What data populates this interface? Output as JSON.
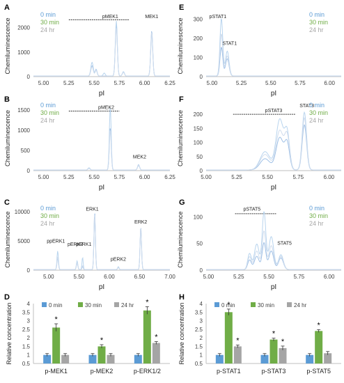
{
  "colors": {
    "blue": "#5b9bd5",
    "green": "#70ad47",
    "gray": "#a5a5a5",
    "line_blue": "#9fc0e6",
    "axis": "#bfbfbf",
    "text": "#404040"
  },
  "chart_data": [
    {
      "panel": "A",
      "type": "line",
      "xlabel": "pI",
      "ylabel": "Chemiluminescence",
      "xlim": [
        4.9,
        6.25
      ],
      "ylim": [
        0,
        2500
      ],
      "xticks": [
        "5.00",
        "5.25",
        "5.50",
        "5.75",
        "6.00",
        "6.25"
      ],
      "xtick_values": [
        5.0,
        5.25,
        5.5,
        5.75,
        6.0,
        6.25
      ],
      "yticks": [
        "0",
        "1000",
        "2000"
      ],
      "ytick_values": [
        0,
        1000,
        2000
      ],
      "legend": [
        "0 min",
        "30 min",
        "24 hr"
      ],
      "annotations": [
        {
          "text": "pMEK1",
          "x": 5.66,
          "y": 2380
        },
        {
          "text": "MEK1",
          "x": 6.07,
          "y": 2380
        }
      ],
      "bracket": {
        "x1": 5.25,
        "x2": 5.85,
        "y": 2320
      },
      "series": [
        {
          "name": "0 min",
          "peaks": [
            {
              "pI": 5.48,
              "h": 420,
              "w": 0.012
            },
            {
              "pI": 5.52,
              "h": 250,
              "w": 0.01
            },
            {
              "pI": 5.72,
              "h": 2100,
              "w": 0.01
            },
            {
              "pI": 5.79,
              "h": 170,
              "w": 0.01
            },
            {
              "pI": 6.07,
              "h": 1850,
              "w": 0.01
            }
          ]
        },
        {
          "name": "30 min",
          "peaks": [
            {
              "pI": 5.48,
              "h": 560,
              "w": 0.012
            },
            {
              "pI": 5.52,
              "h": 280,
              "w": 0.01
            },
            {
              "pI": 5.6,
              "h": 120,
              "w": 0.01
            },
            {
              "pI": 5.72,
              "h": 2250,
              "w": 0.01
            },
            {
              "pI": 5.79,
              "h": 180,
              "w": 0.01
            },
            {
              "pI": 6.07,
              "h": 1720,
              "w": 0.01
            }
          ]
        },
        {
          "name": "24 hr",
          "peaks": [
            {
              "pI": 5.48,
              "h": 380,
              "w": 0.012
            },
            {
              "pI": 5.52,
              "h": 230,
              "w": 0.01
            },
            {
              "pI": 5.72,
              "h": 1950,
              "w": 0.01
            },
            {
              "pI": 5.79,
              "h": 150,
              "w": 0.01
            },
            {
              "pI": 6.07,
              "h": 1800,
              "w": 0.01
            }
          ]
        }
      ]
    },
    {
      "panel": "B",
      "type": "line",
      "xlabel": "pI",
      "ylabel": "Chemiluminescence",
      "xlim": [
        4.9,
        6.25
      ],
      "ylim": [
        0,
        1600
      ],
      "xticks": [
        "5.00",
        "5.25",
        "5.50",
        "5.75",
        "6.00",
        "6.25"
      ],
      "xtick_values": [
        5.0,
        5.25,
        5.5,
        5.75,
        6.0,
        6.25
      ],
      "yticks": [
        "0",
        "500",
        "1000",
        "1500"
      ],
      "ytick_values": [
        0,
        500,
        1000,
        1500
      ],
      "legend": [
        "0 min",
        "30 min",
        "24 hr"
      ],
      "annotations": [
        {
          "text": "pMEK2",
          "x": 5.62,
          "y": 1520
        },
        {
          "text": "MEK2",
          "x": 5.95,
          "y": 300
        }
      ],
      "bracket": {
        "x1": 5.25,
        "x2": 5.75,
        "y": 1470
      },
      "series": [
        {
          "name": "0 min",
          "peaks": [
            {
              "pI": 5.66,
              "h": 1050,
              "w": 0.009
            },
            {
              "pI": 5.45,
              "h": 40,
              "w": 0.01
            },
            {
              "pI": 5.94,
              "h": 130,
              "w": 0.01
            }
          ]
        },
        {
          "name": "30 min",
          "peaks": [
            {
              "pI": 5.66,
              "h": 1560,
              "w": 0.009
            },
            {
              "pI": 5.45,
              "h": 55,
              "w": 0.01
            },
            {
              "pI": 5.94,
              "h": 110,
              "w": 0.01
            }
          ]
        },
        {
          "name": "24 hr",
          "peaks": [
            {
              "pI": 5.66,
              "h": 1000,
              "w": 0.009
            },
            {
              "pI": 5.45,
              "h": 40,
              "w": 0.01
            },
            {
              "pI": 5.94,
              "h": 120,
              "w": 0.01
            }
          ]
        }
      ]
    },
    {
      "panel": "C",
      "type": "line",
      "xlabel": "pI",
      "ylabel": "Chemiluminescence",
      "xlim": [
        4.75,
        7.0
      ],
      "ylim": [
        0,
        10500
      ],
      "xticks": [
        "5.00",
        "5.50",
        "6.00",
        "6.50",
        "7.00"
      ],
      "xtick_values": [
        5.0,
        5.5,
        6.0,
        6.5,
        7.0
      ],
      "yticks": [
        "0",
        "5000",
        "10000"
      ],
      "ytick_values": [
        0,
        5000,
        10000
      ],
      "legend": [
        "0 min",
        "30 min",
        "24 hr"
      ],
      "annotations": [
        {
          "text": "ppERK1",
          "x": 5.12,
          "y": 4700
        },
        {
          "text": "pERK2",
          "x": 5.44,
          "y": 4200
        },
        {
          "text": "pERK1",
          "x": 5.58,
          "y": 4200
        },
        {
          "text": "ERK1",
          "x": 5.72,
          "y": 10200
        },
        {
          "text": "pERK2",
          "x": 6.15,
          "y": 1600
        },
        {
          "text": "ERK2",
          "x": 6.52,
          "y": 8000
        }
      ],
      "series": [
        {
          "name": "0 min",
          "peaks": [
            {
              "pI": 5.15,
              "h": 2000,
              "w": 0.012
            },
            {
              "pI": 5.47,
              "h": 1100,
              "w": 0.012
            },
            {
              "pI": 5.56,
              "h": 500,
              "w": 0.01
            },
            {
              "pI": 5.76,
              "h": 9800,
              "w": 0.012
            },
            {
              "pI": 6.15,
              "h": 350,
              "w": 0.012
            },
            {
              "pI": 6.52,
              "h": 7400,
              "w": 0.012
            }
          ]
        },
        {
          "name": "30 min",
          "peaks": [
            {
              "pI": 5.15,
              "h": 3200,
              "w": 0.012
            },
            {
              "pI": 5.47,
              "h": 1500,
              "w": 0.012
            },
            {
              "pI": 5.56,
              "h": 2100,
              "w": 0.01
            },
            {
              "pI": 5.76,
              "h": 9000,
              "w": 0.012
            },
            {
              "pI": 6.15,
              "h": 500,
              "w": 0.012
            },
            {
              "pI": 6.52,
              "h": 7100,
              "w": 0.012
            }
          ]
        },
        {
          "name": "24 hr",
          "peaks": [
            {
              "pI": 5.15,
              "h": 2200,
              "w": 0.012
            },
            {
              "pI": 5.47,
              "h": 1200,
              "w": 0.012
            },
            {
              "pI": 5.56,
              "h": 700,
              "w": 0.01
            },
            {
              "pI": 5.76,
              "h": 9500,
              "w": 0.012
            },
            {
              "pI": 6.15,
              "h": 380,
              "w": 0.012
            },
            {
              "pI": 6.52,
              "h": 7300,
              "w": 0.012
            }
          ]
        }
      ]
    },
    {
      "panel": "E",
      "type": "line",
      "xlabel": "pI",
      "ylabel": "Chemiluminescence",
      "xlim": [
        4.95,
        6.1
      ],
      "ylim": [
        0,
        320
      ],
      "xticks": [
        "5.00",
        "5.25",
        "5.50",
        "5.75",
        "6.00"
      ],
      "xtick_values": [
        5.0,
        5.25,
        5.5,
        5.75,
        6.0
      ],
      "yticks": [
        "0",
        "100",
        "200",
        "300"
      ],
      "ytick_values": [
        0,
        100,
        200,
        300
      ],
      "legend": [
        "0 min",
        "30 min",
        "24 hr"
      ],
      "annotations": [
        {
          "text": "pSTAT1",
          "x": 5.05,
          "y": 305
        },
        {
          "text": "STAT1",
          "x": 5.15,
          "y": 165
        }
      ],
      "series": [
        {
          "name": "0 min",
          "peaks": [
            {
              "pI": 5.08,
              "h": 150,
              "w": 0.012
            },
            {
              "pI": 5.13,
              "h": 90,
              "w": 0.015
            }
          ]
        },
        {
          "name": "30 min",
          "peaks": [
            {
              "pI": 5.08,
              "h": 300,
              "w": 0.012
            },
            {
              "pI": 5.13,
              "h": 130,
              "w": 0.015
            }
          ]
        },
        {
          "name": "24 hr",
          "peaks": [
            {
              "pI": 5.08,
              "h": 220,
              "w": 0.012
            },
            {
              "pI": 5.13,
              "h": 105,
              "w": 0.015
            }
          ]
        }
      ]
    },
    {
      "panel": "F",
      "type": "line",
      "xlabel": "pI",
      "ylabel": "Chemiluminescence",
      "xlim": [
        5.0,
        6.1
      ],
      "ylim": [
        0,
        230
      ],
      "xticks": [
        "5.00",
        "5.25",
        "5.50",
        "5.75",
        "6.00"
      ],
      "xtick_values": [
        5.0,
        5.25,
        5.5,
        5.75,
        6.0
      ],
      "yticks": [
        "0",
        "50",
        "100",
        "150",
        "200"
      ],
      "ytick_values": [
        0,
        50,
        100,
        150,
        200
      ],
      "legend": [
        "0 min",
        "30 min",
        "24 hr"
      ],
      "annotations": [
        {
          "text": "pSTAT3",
          "x": 5.55,
          "y": 208
        },
        {
          "text": "STAT3",
          "x": 5.82,
          "y": 225
        }
      ],
      "bracket": {
        "x1": 5.22,
        "x2": 5.73,
        "y": 200
      },
      "series": [
        {
          "name": "0 min",
          "peaks": [
            {
              "pI": 5.48,
              "h": 40,
              "w": 0.04
            },
            {
              "pI": 5.6,
              "h": 115,
              "w": 0.03
            },
            {
              "pI": 5.66,
              "h": 90,
              "w": 0.02
            },
            {
              "pI": 5.8,
              "h": 160,
              "w": 0.018
            }
          ]
        },
        {
          "name": "30 min",
          "peaks": [
            {
              "pI": 5.48,
              "h": 65,
              "w": 0.04
            },
            {
              "pI": 5.6,
              "h": 180,
              "w": 0.03
            },
            {
              "pI": 5.66,
              "h": 125,
              "w": 0.02
            },
            {
              "pI": 5.8,
              "h": 205,
              "w": 0.018
            }
          ]
        },
        {
          "name": "24 hr",
          "peaks": [
            {
              "pI": 5.48,
              "h": 55,
              "w": 0.04
            },
            {
              "pI": 5.6,
              "h": 140,
              "w": 0.03
            },
            {
              "pI": 5.66,
              "h": 115,
              "w": 0.02
            },
            {
              "pI": 5.8,
              "h": 185,
              "w": 0.018
            }
          ]
        }
      ]
    },
    {
      "panel": "G",
      "type": "line",
      "xlabel": "pI",
      "ylabel": "Chemiluminescence",
      "xlim": [
        4.98,
        6.1
      ],
      "ylim": [
        0,
        115
      ],
      "xticks": [
        "5.00",
        "5.25",
        "5.50",
        "5.75",
        "6.00"
      ],
      "xtick_values": [
        5.0,
        5.25,
        5.5,
        5.75,
        6.0
      ],
      "yticks": [
        "0",
        "50",
        "100"
      ],
      "ytick_values": [
        0,
        50,
        100
      ],
      "legend": [
        "0 min",
        "30 min",
        "24 hr"
      ],
      "annotations": [
        {
          "text": "pSTAT5",
          "x": 5.36,
          "y": 112
        },
        {
          "text": "STAT5",
          "x": 5.63,
          "y": 48
        }
      ],
      "bracket": {
        "x1": 5.22,
        "x2": 5.56,
        "y": 106
      },
      "series": [
        {
          "name": "0 min",
          "peaks": [
            {
              "pI": 5.34,
              "h": 18,
              "w": 0.015
            },
            {
              "pI": 5.4,
              "h": 25,
              "w": 0.02
            },
            {
              "pI": 5.46,
              "h": 50,
              "w": 0.015
            },
            {
              "pI": 5.52,
              "h": 35,
              "w": 0.02
            },
            {
              "pI": 5.6,
              "h": 22,
              "w": 0.02
            }
          ]
        },
        {
          "name": "30 min",
          "peaks": [
            {
              "pI": 5.34,
              "h": 30,
              "w": 0.015
            },
            {
              "pI": 5.4,
              "h": 48,
              "w": 0.02
            },
            {
              "pI": 5.46,
              "h": 108,
              "w": 0.015
            },
            {
              "pI": 5.52,
              "h": 62,
              "w": 0.02
            },
            {
              "pI": 5.6,
              "h": 28,
              "w": 0.02
            }
          ]
        },
        {
          "name": "24 hr",
          "peaks": [
            {
              "pI": 5.34,
              "h": 24,
              "w": 0.015
            },
            {
              "pI": 5.4,
              "h": 35,
              "w": 0.02
            },
            {
              "pI": 5.46,
              "h": 72,
              "w": 0.015
            },
            {
              "pI": 5.52,
              "h": 45,
              "w": 0.02
            },
            {
              "pI": 5.6,
              "h": 25,
              "w": 0.02
            }
          ]
        }
      ]
    },
    {
      "panel": "D",
      "type": "bar",
      "ylabel": "Relative  concentration",
      "ylim": [
        0.5,
        4.0
      ],
      "yticks": [
        "0.5",
        "1",
        "1.5",
        "2",
        "2.5",
        "3",
        "3.5",
        "4"
      ],
      "ytick_values": [
        0.5,
        1,
        1.5,
        2,
        2.5,
        3,
        3.5,
        4
      ],
      "categories": [
        "p-MEK1",
        "p-MEK2",
        "p-ERK1/2"
      ],
      "legend": [
        "0 min",
        "30 min",
        "24 hr"
      ],
      "series": [
        {
          "name": "0 min",
          "values": [
            1.0,
            1.0,
            1.0
          ],
          "errors": [
            0.08,
            0.08,
            0.08
          ],
          "star": [
            false,
            false,
            false
          ]
        },
        {
          "name": "30 min",
          "values": [
            2.6,
            1.5,
            3.6
          ],
          "errors": [
            0.22,
            0.1,
            0.22
          ],
          "star": [
            true,
            true,
            true
          ]
        },
        {
          "name": "24 hr",
          "values": [
            1.0,
            1.0,
            1.7
          ],
          "errors": [
            0.08,
            0.08,
            0.08
          ],
          "star": [
            false,
            false,
            true
          ]
        }
      ]
    },
    {
      "panel": "H",
      "type": "bar",
      "ylabel": "Relative concentration",
      "ylim": [
        0.5,
        4.0
      ],
      "yticks": [
        "0.5",
        "1",
        "1.5",
        "2",
        "2.5",
        "3",
        "3.5",
        "4"
      ],
      "ytick_values": [
        0.5,
        1,
        1.5,
        2,
        2.5,
        3,
        3.5,
        4
      ],
      "categories": [
        "p-STAT1",
        "p-STAT3",
        "p-STAT5"
      ],
      "legend": [
        "0 min",
        "30 min",
        "24 hr"
      ],
      "series": [
        {
          "name": "0 min",
          "values": [
            1.0,
            1.0,
            1.0
          ],
          "errors": [
            0.08,
            0.08,
            0.08
          ],
          "star": [
            false,
            false,
            false
          ]
        },
        {
          "name": "30 min",
          "values": [
            3.5,
            1.9,
            2.4
          ],
          "errors": [
            0.18,
            0.08,
            0.08
          ],
          "star": [
            true,
            true,
            true
          ]
        },
        {
          "name": "24 hr",
          "values": [
            1.5,
            1.4,
            1.1
          ],
          "errors": [
            0.08,
            0.12,
            0.1
          ],
          "star": [
            true,
            true,
            false
          ]
        }
      ]
    }
  ]
}
